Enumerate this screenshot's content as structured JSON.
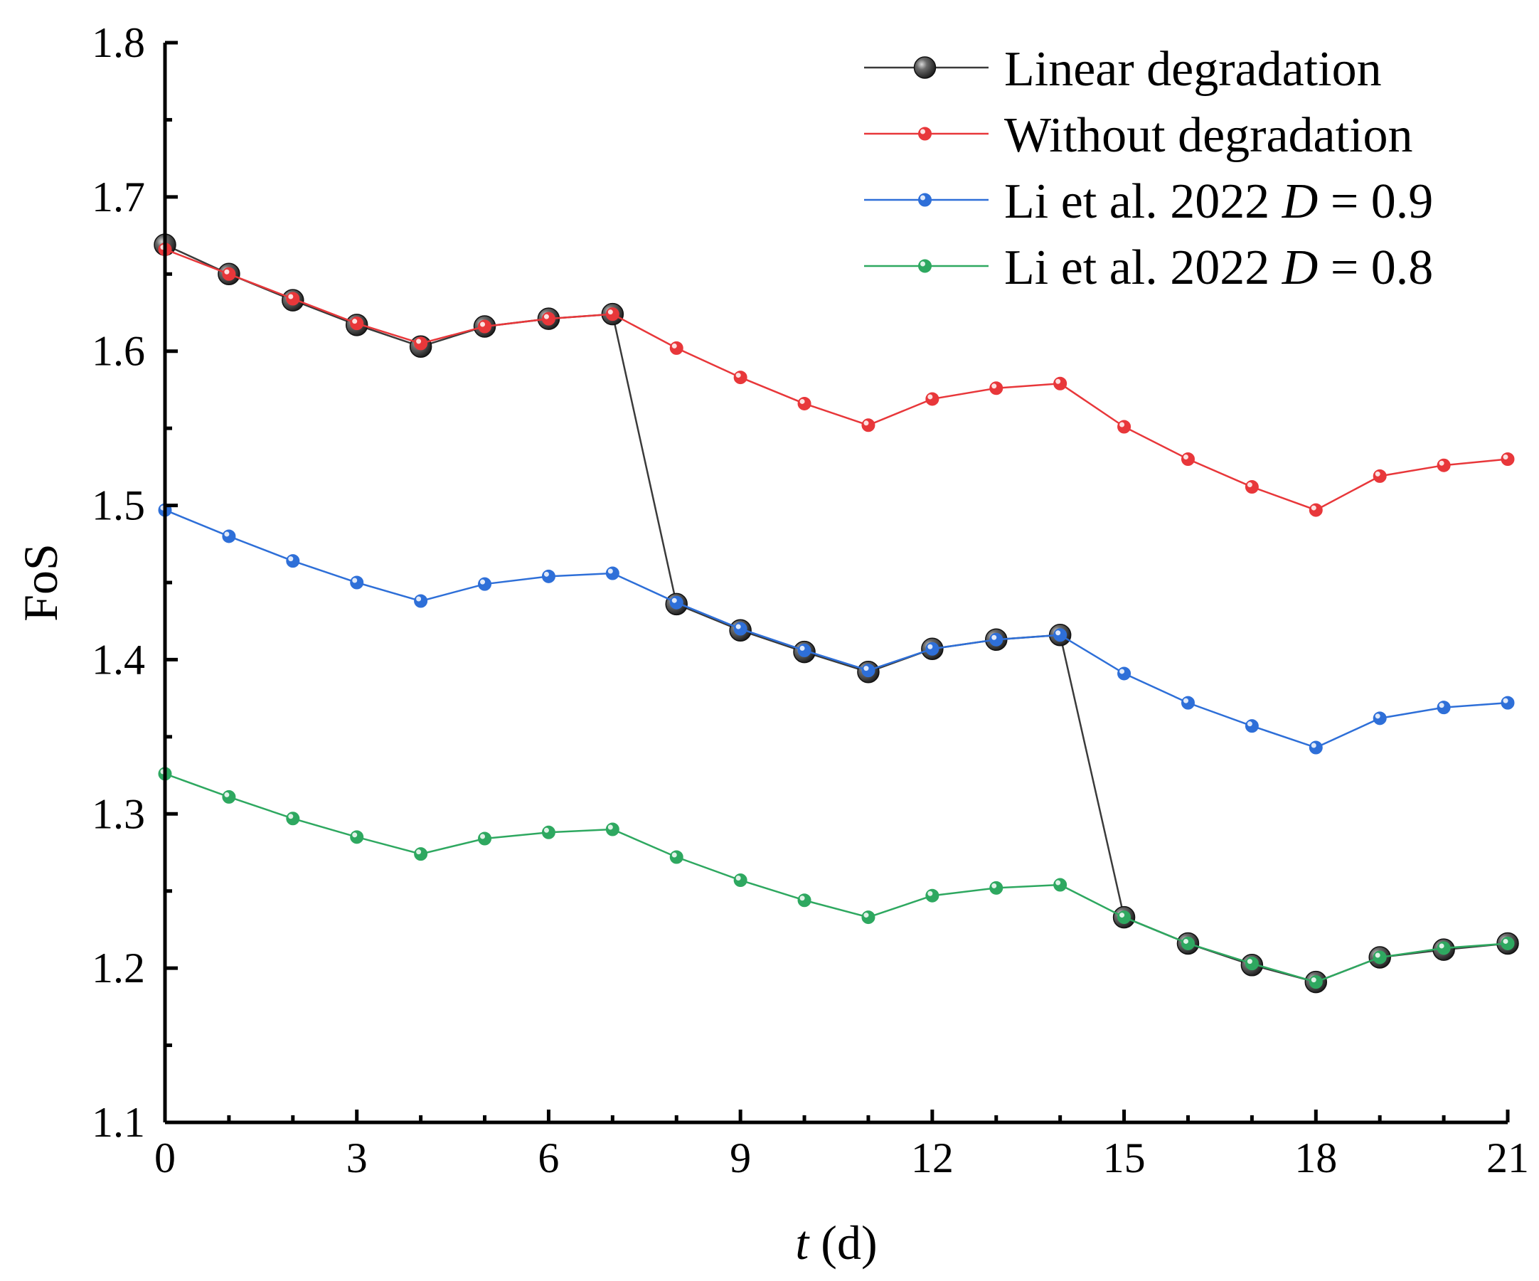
{
  "chart_data": {
    "type": "line",
    "title": "",
    "xlabel_italic": "t",
    "xlabel_rest": " (d)",
    "ylabel": "FoS",
    "xlim": [
      0,
      21
    ],
    "ylim": [
      1.1,
      1.8
    ],
    "xticks": [
      0,
      3,
      6,
      9,
      12,
      15,
      18,
      21
    ],
    "yticks": [
      1.1,
      1.2,
      1.3,
      1.4,
      1.5,
      1.6,
      1.7,
      1.8
    ],
    "xtick_labels": [
      "0",
      "3",
      "6",
      "9",
      "12",
      "15",
      "18",
      "21"
    ],
    "ytick_labels": [
      "1.1",
      "1.2",
      "1.3",
      "1.4",
      "1.5",
      "1.6",
      "1.7",
      "1.8"
    ],
    "legend_position": "top-right",
    "x": [
      0,
      1,
      2,
      3,
      4,
      5,
      6,
      7,
      8,
      9,
      10,
      11,
      12,
      13,
      14,
      15,
      16,
      17,
      18,
      19,
      20,
      21
    ],
    "series": [
      {
        "name": "Linear degradation",
        "legend_parts": [
          {
            "text": "Linear degradation",
            "italic": false
          }
        ],
        "color": "#3a3a3a",
        "marker": "large",
        "values": [
          1.669,
          1.65,
          1.633,
          1.617,
          1.603,
          1.616,
          1.621,
          1.624,
          1.436,
          1.419,
          1.405,
          1.392,
          1.407,
          1.413,
          1.416,
          1.233,
          1.216,
          1.202,
          1.191,
          1.207,
          1.212,
          1.216
        ]
      },
      {
        "name": "Without degradation",
        "legend_parts": [
          {
            "text": "Without degradation",
            "italic": false
          }
        ],
        "color": "#e8373a",
        "marker": "small",
        "values": [
          1.666,
          1.65,
          1.634,
          1.618,
          1.605,
          1.616,
          1.621,
          1.624,
          1.602,
          1.583,
          1.566,
          1.552,
          1.569,
          1.576,
          1.579,
          1.551,
          1.53,
          1.512,
          1.497,
          1.519,
          1.526,
          1.53
        ]
      },
      {
        "name": "Li et al. 2022 D = 0.9",
        "legend_parts": [
          {
            "text": "Li et al. 2022 ",
            "italic": false
          },
          {
            "text": "D",
            "italic": true
          },
          {
            "text": " = 0.9",
            "italic": false
          }
        ],
        "color": "#2e6fd8",
        "marker": "small",
        "values": [
          1.497,
          1.48,
          1.464,
          1.45,
          1.438,
          1.449,
          1.454,
          1.456,
          1.437,
          1.42,
          1.406,
          1.393,
          1.407,
          1.413,
          1.416,
          1.391,
          1.372,
          1.357,
          1.343,
          1.362,
          1.369,
          1.372
        ]
      },
      {
        "name": "Li et al. 2022 D = 0.8",
        "legend_parts": [
          {
            "text": "Li et al. 2022 ",
            "italic": false
          },
          {
            "text": "D",
            "italic": true
          },
          {
            "text": " = 0.8",
            "italic": false
          }
        ],
        "color": "#2ea860",
        "marker": "small",
        "values": [
          1.326,
          1.311,
          1.297,
          1.285,
          1.274,
          1.284,
          1.288,
          1.29,
          1.272,
          1.257,
          1.244,
          1.233,
          1.247,
          1.252,
          1.254,
          1.233,
          1.216,
          1.203,
          1.191,
          1.207,
          1.213,
          1.216
        ]
      }
    ]
  }
}
